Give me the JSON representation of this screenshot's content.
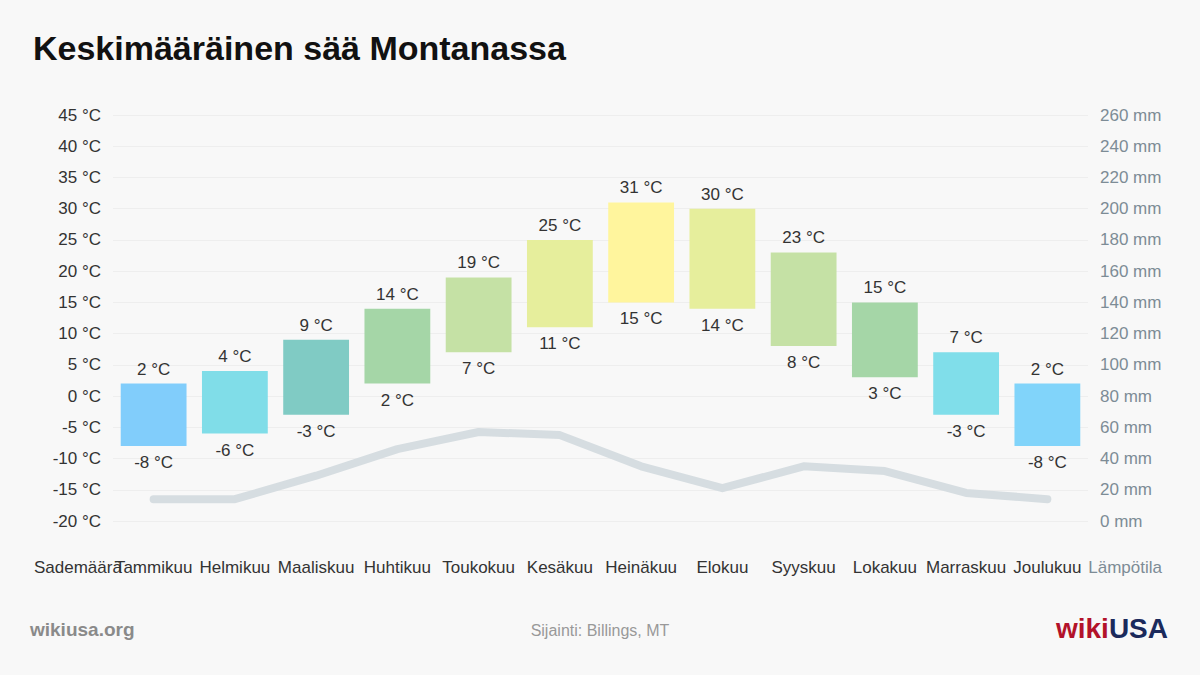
{
  "chart_data": {
    "type": "bar",
    "title": "Keskimääräinen sää Montanassa",
    "source": "wikiusa.org",
    "location": "Sijainti: Billings, MT",
    "logo": [
      "wiki",
      "USA"
    ],
    "x_label_left": "Sademäärä",
    "x_label_right": "Lämpötila",
    "categories": [
      "Tammikuu",
      "Helmikuu",
      "Maaliskuu",
      "Huhtikuu",
      "Toukokuu",
      "Kesäkuu",
      "Heinäkuu",
      "Elokuu",
      "Syyskuu",
      "Lokakuu",
      "Marraskuu",
      "Joulukuu"
    ],
    "grid": true,
    "ylim": [
      -20,
      45
    ],
    "yticks": [
      {
        "value": -20,
        "label": "-20 °C"
      },
      {
        "value": -15,
        "label": "-15 °C"
      },
      {
        "value": -10,
        "label": "-10 °C"
      },
      {
        "value": -5,
        "label": "-5 °C"
      },
      {
        "value": 0,
        "label": "0 °C"
      },
      {
        "value": 5,
        "label": "5 °C"
      },
      {
        "value": 10,
        "label": "10 °C"
      },
      {
        "value": 15,
        "label": "15 °C"
      },
      {
        "value": 20,
        "label": "20 °C"
      },
      {
        "value": 25,
        "label": "25 °C"
      },
      {
        "value": 30,
        "label": "30 °C"
      },
      {
        "value": 35,
        "label": "35 °C"
      },
      {
        "value": 40,
        "label": "40 °C"
      },
      {
        "value": 45,
        "label": "45 °C"
      }
    ],
    "y2lim": [
      0,
      260
    ],
    "y2ticks": [
      {
        "value": 0,
        "label": "0 mm"
      },
      {
        "value": 20,
        "label": "20 mm"
      },
      {
        "value": 40,
        "label": "40 mm"
      },
      {
        "value": 60,
        "label": "60 mm"
      },
      {
        "value": 80,
        "label": "80 mm"
      },
      {
        "value": 100,
        "label": "100 mm"
      },
      {
        "value": 120,
        "label": "120 mm"
      },
      {
        "value": 140,
        "label": "140 mm"
      },
      {
        "value": 160,
        "label": "160 mm"
      },
      {
        "value": 180,
        "label": "180 mm"
      },
      {
        "value": 200,
        "label": "200 mm"
      },
      {
        "value": 220,
        "label": "220 mm"
      },
      {
        "value": 240,
        "label": "240 mm"
      },
      {
        "value": 260,
        "label": "260 mm"
      }
    ],
    "series": [
      {
        "type": "bar",
        "data_labels": true,
        "low": [
          -8,
          -6,
          -3,
          2,
          7,
          11,
          15,
          14,
          8,
          3,
          -3,
          -8
        ],
        "high": [
          2,
          4,
          9,
          14,
          19,
          25,
          31,
          30,
          23,
          15,
          7,
          2
        ],
        "low_labels": [
          "-8 °C",
          "-6 °C",
          "-3 °C",
          "2 °C",
          "7 °C",
          "11 °C",
          "15 °C",
          "14 °C",
          "8 °C",
          "3 °C",
          "-3 °C",
          "-8 °C"
        ],
        "high_labels": [
          "2 °C",
          "4 °C",
          "9 °C",
          "14 °C",
          "19 °C",
          "25 °C",
          "31 °C",
          "30 °C",
          "23 °C",
          "15 °C",
          "7 °C",
          "2 °C"
        ],
        "colors": [
          "#81cdfb",
          "#80dde8",
          "#80cbc4",
          "#a5d6a7",
          "#c5e1a5",
          "#e6ee9c",
          "#fff59d",
          "#e6ee9c",
          "#c5e1a5",
          "#a5d6a7",
          "#80deea",
          "#81d4fa"
        ]
      },
      {
        "type": "line",
        "axis": "y2",
        "color": "#d6dde1",
        "values": [
          14,
          14,
          29,
          46,
          57,
          55,
          35,
          21,
          35,
          32,
          18,
          14
        ]
      }
    ]
  }
}
